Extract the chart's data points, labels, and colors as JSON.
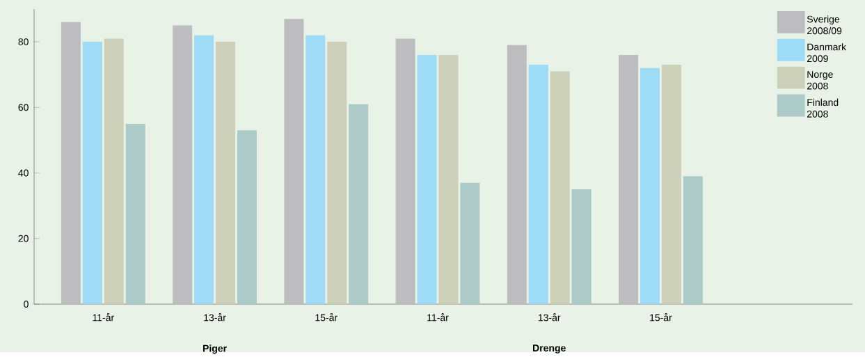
{
  "chart_data": {
    "type": "bar",
    "categories": [
      "11-år",
      "13-år",
      "15-år",
      "11-år",
      "13-år",
      "15-år"
    ],
    "series": [
      {
        "name": "Sverige 2008/09",
        "color": "#bdbdc0",
        "values": [
          86,
          85,
          87,
          81,
          79,
          76
        ]
      },
      {
        "name": "Danmark 2009",
        "color": "#9ddbf6",
        "values": [
          80,
          82,
          82,
          76,
          73,
          72
        ]
      },
      {
        "name": "Norge 2008",
        "color": "#cdd0b9",
        "values": [
          81,
          80,
          80,
          76,
          71,
          73
        ]
      },
      {
        "name": "Finland 2008",
        "color": "#abcac8",
        "values": [
          55,
          53,
          61,
          37,
          35,
          39
        ]
      }
    ],
    "ylim": [
      0,
      90
    ],
    "yticks": [
      0,
      20,
      40,
      60,
      80
    ],
    "annotations": [
      "Piger",
      "Drenge"
    ],
    "legend": "top right",
    "grid": false
  }
}
